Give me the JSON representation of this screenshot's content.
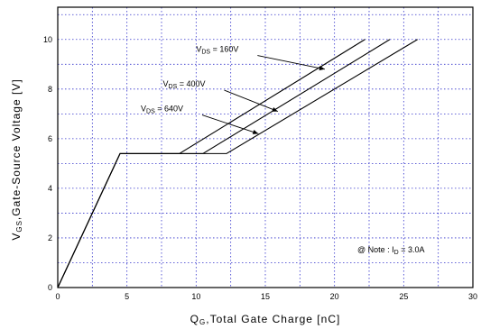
{
  "chart_data": {
    "type": "line",
    "xlabel": {
      "main": "Q",
      "sub": "G",
      "rest": ",Total Gate Charge [nC]"
    },
    "ylabel": {
      "main": "V",
      "sub": "GS",
      "rest": ",Gate-Source Voltage [V]"
    },
    "xlim": [
      0,
      30
    ],
    "ylim": [
      0,
      11.3
    ],
    "x_ticks": [
      0,
      5,
      10,
      15,
      20,
      25,
      30
    ],
    "y_ticks": [
      0,
      2,
      4,
      6,
      8,
      10
    ],
    "grid": true,
    "series": [
      {
        "name": "V_DS=160V",
        "x": [
          0,
          4.5,
          8.8,
          22.2
        ],
        "y": [
          0,
          5.4,
          5.4,
          10.0
        ]
      },
      {
        "name": "V_DS=400V",
        "x": [
          0,
          4.5,
          10.5,
          24.0
        ],
        "y": [
          0,
          5.4,
          5.4,
          10.0
        ]
      },
      {
        "name": "V_DS=640V",
        "x": [
          0,
          4.5,
          12.2,
          26.0
        ],
        "y": [
          0,
          5.4,
          5.4,
          10.0
        ]
      }
    ],
    "annotations": [
      {
        "text_main": "V",
        "text_sub": "DS",
        "text_rest": " = 160V",
        "at": [
          10.0,
          9.5
        ],
        "arrow_to": [
          19.3,
          8.8
        ]
      },
      {
        "text_main": "V",
        "text_sub": "DS",
        "text_rest": " = 400V",
        "at": [
          7.6,
          8.1
        ],
        "arrow_to": [
          15.9,
          7.1
        ]
      },
      {
        "text_main": "V",
        "text_sub": "DS",
        "text_rest": " = 640V",
        "at": [
          6.0,
          7.1
        ],
        "arrow_to": [
          14.5,
          6.2
        ]
      }
    ],
    "note": {
      "prefix": "@ Note : I",
      "sub": "D",
      "rest": " = 3.0A"
    }
  }
}
